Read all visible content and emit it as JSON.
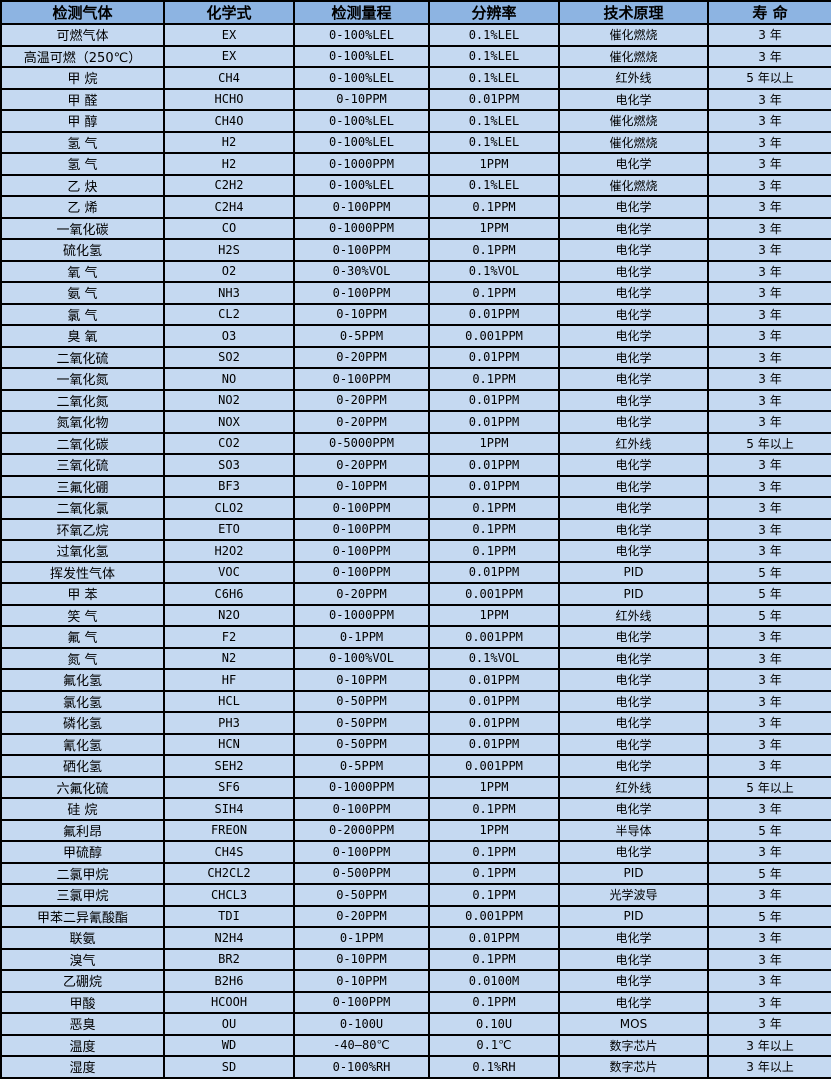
{
  "colors": {
    "header_bg": "#8DB4E2",
    "row_bg": "#C5D9F1",
    "border": "#000000",
    "text": "#000000"
  },
  "table": {
    "headers": [
      "检测气体",
      "化学式",
      "检测量程",
      "分辨率",
      "技术原理",
      "寿 命"
    ],
    "rows": [
      [
        "可燃气体",
        "EX",
        "0-100%LEL",
        "0.1%LEL",
        "催化燃烧",
        "3 年"
      ],
      [
        "高温可燃（250℃）",
        "EX",
        "0-100%LEL",
        "0.1%LEL",
        "催化燃烧",
        "3 年"
      ],
      [
        "甲 烷",
        "CH4",
        "0-100%LEL",
        "0.1%LEL",
        "红外线",
        "5 年以上"
      ],
      [
        "甲 醛",
        "HCHO",
        "0-10PPM",
        "0.01PPM",
        "电化学",
        "3 年"
      ],
      [
        "甲 醇",
        "CH4O",
        "0-100%LEL",
        "0.1%LEL",
        "催化燃烧",
        "3 年"
      ],
      [
        "氢 气",
        "H2",
        "0-100%LEL",
        "0.1%LEL",
        "催化燃烧",
        "3 年"
      ],
      [
        "氢 气",
        "H2",
        "0-1000PPM",
        "1PPM",
        "电化学",
        "3 年"
      ],
      [
        "乙 炔",
        "C2H2",
        "0-100%LEL",
        "0.1%LEL",
        "催化燃烧",
        "3 年"
      ],
      [
        "乙 烯",
        "C2H4",
        "0-100PPM",
        "0.1PPM",
        "电化学",
        "3 年"
      ],
      [
        "一氧化碳",
        "CO",
        "0-1000PPM",
        "1PPM",
        "电化学",
        "3 年"
      ],
      [
        "硫化氢",
        "H2S",
        "0-100PPM",
        "0.1PPM",
        "电化学",
        "3 年"
      ],
      [
        "氧 气",
        "O2",
        "0-30%VOL",
        "0.1%VOL",
        "电化学",
        "3 年"
      ],
      [
        "氨 气",
        "NH3",
        "0-100PPM",
        "0.1PPM",
        "电化学",
        "3 年"
      ],
      [
        "氯 气",
        "CL2",
        "0-10PPM",
        "0.01PPM",
        "电化学",
        "3 年"
      ],
      [
        "臭 氧",
        "O3",
        "0-5PPM",
        "0.001PPM",
        "电化学",
        "3 年"
      ],
      [
        "二氧化硫",
        "SO2",
        "0-20PPM",
        "0.01PPM",
        "电化学",
        "3 年"
      ],
      [
        "一氧化氮",
        "NO",
        "0-100PPM",
        "0.1PPM",
        "电化学",
        "3 年"
      ],
      [
        "二氧化氮",
        "NO2",
        "0-20PPM",
        "0.01PPM",
        "电化学",
        "3 年"
      ],
      [
        "氮氧化物",
        "NOX",
        "0-20PPM",
        "0.01PPM",
        "电化学",
        "3 年"
      ],
      [
        "二氧化碳",
        "CO2",
        "0-5000PPM",
        "1PPM",
        "红外线",
        "5 年以上"
      ],
      [
        "三氧化硫",
        "SO3",
        "0-20PPM",
        "0.01PPM",
        "电化学",
        "3 年"
      ],
      [
        "三氟化硼",
        "BF3",
        "0-10PPM",
        "0.01PPM",
        "电化学",
        "3 年"
      ],
      [
        "二氧化氯",
        "CLO2",
        "0-100PPM",
        "0.1PPM",
        "电化学",
        "3 年"
      ],
      [
        "环氧乙烷",
        "ETO",
        "0-100PPM",
        "0.1PPM",
        "电化学",
        "3 年"
      ],
      [
        "过氧化氢",
        "H2O2",
        "0-100PPM",
        "0.1PPM",
        "电化学",
        "3 年"
      ],
      [
        "挥发性气体",
        "VOC",
        "0-100PPM",
        "0.01PPM",
        "PID",
        "5 年"
      ],
      [
        "甲 苯",
        "C6H6",
        "0-20PPM",
        "0.001PPM",
        "PID",
        "5 年"
      ],
      [
        "笑 气",
        "N2O",
        "0-1000PPM",
        "1PPM",
        "红外线",
        "5 年"
      ],
      [
        "氟 气",
        "F2",
        "0-1PPM",
        "0.001PPM",
        "电化学",
        "3 年"
      ],
      [
        "氮 气",
        "N2",
        "0-100%VOL",
        "0.1%VOL",
        "电化学",
        "3 年"
      ],
      [
        "氟化氢",
        "HF",
        "0-10PPM",
        "0.01PPM",
        "电化学",
        "3 年"
      ],
      [
        "氯化氢",
        "HCL",
        "0-50PPM",
        "0.01PPM",
        "电化学",
        "3 年"
      ],
      [
        "磷化氢",
        "PH3",
        "0-50PPM",
        "0.01PPM",
        "电化学",
        "3 年"
      ],
      [
        "氰化氢",
        "HCN",
        "0-50PPM",
        "0.01PPM",
        "电化学",
        "3 年"
      ],
      [
        "硒化氢",
        "SEH2",
        "0-5PPM",
        "0.001PPM",
        "电化学",
        "3 年"
      ],
      [
        "六氟化硫",
        "SF6",
        "0-1000PPM",
        "1PPM",
        "红外线",
        "5 年以上"
      ],
      [
        "硅 烷",
        "SIH4",
        "0-100PPM",
        "0.1PPM",
        "电化学",
        "3 年"
      ],
      [
        "氟利昂",
        "FREON",
        "0-2000PPM",
        "1PPM",
        "半导体",
        "5 年"
      ],
      [
        "甲硫醇",
        "CH4S",
        "0-100PPM",
        "0.1PPM",
        "电化学",
        "3 年"
      ],
      [
        "二氯甲烷",
        "CH2CL2",
        "0-500PPM",
        "0.1PPM",
        "PID",
        "5 年"
      ],
      [
        "三氯甲烷",
        "CHCL3",
        "0-50PPM",
        "0.1PPM",
        "光学波导",
        "3 年"
      ],
      [
        "甲苯二异氰酸酯",
        "TDI",
        "0-20PPM",
        "0.001PPM",
        "PID",
        "5 年"
      ],
      [
        "联氨",
        "N2H4",
        "0-1PPM",
        "0.01PPM",
        "电化学",
        "3 年"
      ],
      [
        "溴气",
        "BR2",
        "0-10PPM",
        "0.1PPM",
        "电化学",
        "3 年"
      ],
      [
        "乙硼烷",
        "B2H6",
        "0-10PPM",
        "0.0100M",
        "电化学",
        "3 年"
      ],
      [
        "甲酸",
        "HCOOH",
        "0-100PPM",
        "0.1PPM",
        "电化学",
        "3 年"
      ],
      [
        "恶臭",
        "OU",
        "0-100U",
        "0.10U",
        "MOS",
        "3 年"
      ],
      [
        "温度",
        "WD",
        "-40—80℃",
        "0.1℃",
        "数字芯片",
        "3 年以上"
      ],
      [
        "湿度",
        "SD",
        "0-100%RH",
        "0.1%RH",
        "数字芯片",
        "3 年以上"
      ]
    ]
  }
}
